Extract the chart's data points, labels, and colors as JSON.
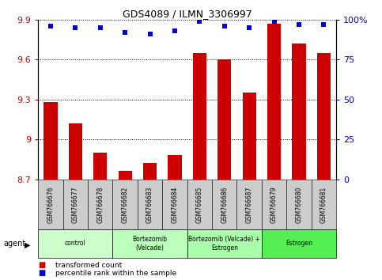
{
  "title": "GDS4089 / ILMN_3306997",
  "samples": [
    "GSM766676",
    "GSM766677",
    "GSM766678",
    "GSM766682",
    "GSM766683",
    "GSM766684",
    "GSM766685",
    "GSM766686",
    "GSM766687",
    "GSM766679",
    "GSM766680",
    "GSM766681"
  ],
  "bar_values": [
    9.28,
    9.12,
    8.9,
    8.76,
    8.82,
    8.88,
    9.65,
    9.6,
    9.35,
    9.87,
    9.72,
    9.65
  ],
  "dot_values": [
    96,
    95,
    95,
    92,
    91,
    93,
    99,
    96,
    95,
    99,
    97,
    97
  ],
  "ylim_left": [
    8.7,
    9.9
  ],
  "ylim_right": [
    0,
    100
  ],
  "yticks_left": [
    8.7,
    9.0,
    9.3,
    9.6,
    9.9
  ],
  "yticks_right": [
    0,
    25,
    50,
    75,
    100
  ],
  "bar_color": "#CC0000",
  "dot_color": "#0000CC",
  "groups": [
    {
      "label": "control",
      "start": 0,
      "end": 3,
      "color": "#CCFFCC"
    },
    {
      "label": "Bortezomib\n(Velcade)",
      "start": 3,
      "end": 6,
      "color": "#BBFFBB"
    },
    {
      "label": "Bortezomib (Velcade) +\nEstrogen",
      "start": 6,
      "end": 9,
      "color": "#AAFFAA"
    },
    {
      "label": "Estrogen",
      "start": 9,
      "end": 12,
      "color": "#55EE55"
    }
  ],
  "legend_bar_label": "transformed count",
  "legend_dot_label": "percentile rank within the sample",
  "agent_label": "agent",
  "left_axis_color": "#CC0000",
  "right_axis_color": "#0000CC",
  "tick_bg_color": "#CCCCCC",
  "bar_baseline": 8.7
}
